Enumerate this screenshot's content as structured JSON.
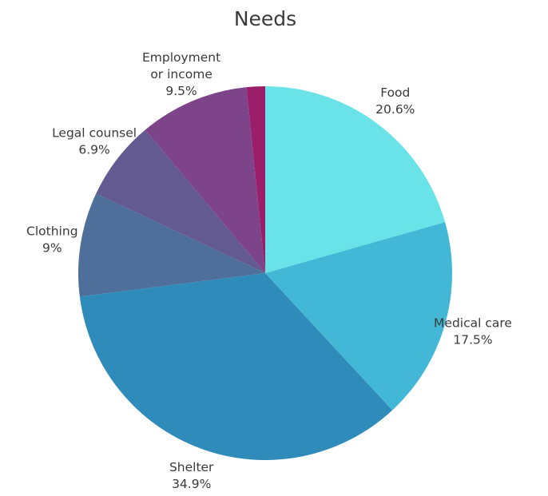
{
  "chart_data": {
    "type": "pie",
    "title": "Needs",
    "series": [
      {
        "name": "",
        "values": []
      }
    ],
    "slices": [
      {
        "label": "Food",
        "value": 20.6,
        "value_label": "20.6%",
        "color": "#69e3e8"
      },
      {
        "label": "Medical care",
        "value": 17.5,
        "value_label": "17.5%",
        "color": "#42b7d6"
      },
      {
        "label": "Shelter",
        "value": 34.9,
        "value_label": "34.9%",
        "color": "#2e8bba"
      },
      {
        "label": "Clothing",
        "value": 9,
        "value_label": "9%",
        "color": "#4d6f99"
      },
      {
        "label": "Legal counsel",
        "value": 6.9,
        "value_label": "6.9%",
        "color": "#635a92"
      },
      {
        "label": "Employment or income",
        "label_lines": [
          "Employment",
          "or income"
        ],
        "value": 9.5,
        "value_label": "9.5%",
        "color": "#7d4489"
      },
      {
        "label": "",
        "value": 1.6,
        "value_label": "",
        "color": "#9a1e6a"
      }
    ],
    "legend": "none"
  }
}
